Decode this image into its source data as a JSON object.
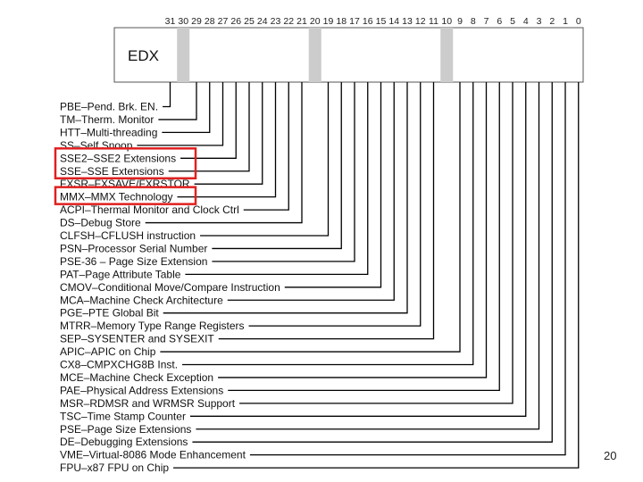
{
  "register": "EDX",
  "bit_numbers": [
    "31",
    "30",
    "29",
    "28",
    "27",
    "26",
    "25",
    "24",
    "23",
    "22",
    "21",
    "20",
    "19",
    "18",
    "17",
    "16",
    "15",
    "14",
    "13",
    "12",
    "11",
    "10",
    "9",
    "8",
    "7",
    "6",
    "5",
    "4",
    "3",
    "2",
    "1",
    "0"
  ],
  "reserved_bits": [
    30,
    20,
    10
  ],
  "highlighted_flags": [
    "SSE2",
    "SSE",
    "MMX"
  ],
  "flags": [
    {
      "bit": 31,
      "text": "PBE–Pend. Brk. EN."
    },
    {
      "bit": 29,
      "text": "TM–Therm. Monitor"
    },
    {
      "bit": 28,
      "text": "HTT–Multi-threading"
    },
    {
      "bit": 27,
      "text": "SS–Self Snoop"
    },
    {
      "bit": 26,
      "text": "SSE2–SSE2 Extensions"
    },
    {
      "bit": 25,
      "text": "SSE–SSE Extensions"
    },
    {
      "bit": 24,
      "text": "FXSR–FXSAVE/FXRSTOR"
    },
    {
      "bit": 23,
      "text": "MMX–MMX Technology"
    },
    {
      "bit": 22,
      "text": "ACPI–Thermal Monitor and Clock Ctrl"
    },
    {
      "bit": 21,
      "text": "DS–Debug Store"
    },
    {
      "bit": 19,
      "text": "CLFSH–CFLUSH instruction"
    },
    {
      "bit": 18,
      "text": "PSN–Processor Serial Number"
    },
    {
      "bit": 17,
      "text": "PSE-36 – Page Size Extension"
    },
    {
      "bit": 16,
      "text": "PAT–Page Attribute Table"
    },
    {
      "bit": 15,
      "text": "CMOV–Conditional Move/Compare Instruction"
    },
    {
      "bit": 14,
      "text": "MCA–Machine Check Architecture"
    },
    {
      "bit": 13,
      "text": "PGE–PTE Global Bit"
    },
    {
      "bit": 12,
      "text": "MTRR–Memory Type Range Registers"
    },
    {
      "bit": 11,
      "text": "SEP–SYSENTER and SYSEXIT"
    },
    {
      "bit": 9,
      "text": "APIC–APIC on Chip"
    },
    {
      "bit": 8,
      "text": "CX8–CMPXCHG8B Inst."
    },
    {
      "bit": 7,
      "text": "MCE–Machine Check Exception"
    },
    {
      "bit": 6,
      "text": "PAE–Physical Address Extensions"
    },
    {
      "bit": 5,
      "text": "MSR–RDMSR and WRMSR Support"
    },
    {
      "bit": 4,
      "text": "TSC–Time Stamp Counter"
    },
    {
      "bit": 3,
      "text": "PSE–Page Size Extensions"
    },
    {
      "bit": 2,
      "text": "DE–Debugging Extensions"
    },
    {
      "bit": 1,
      "text": "VME–Virtual-8086 Mode Enhancement"
    },
    {
      "bit": 0,
      "text": "FPU–x87 FPU on Chip"
    }
  ],
  "page_number": "20",
  "colors": {
    "reserved_fill": "#cccccc",
    "highlight_box": "#e02020",
    "line": "#000000"
  }
}
